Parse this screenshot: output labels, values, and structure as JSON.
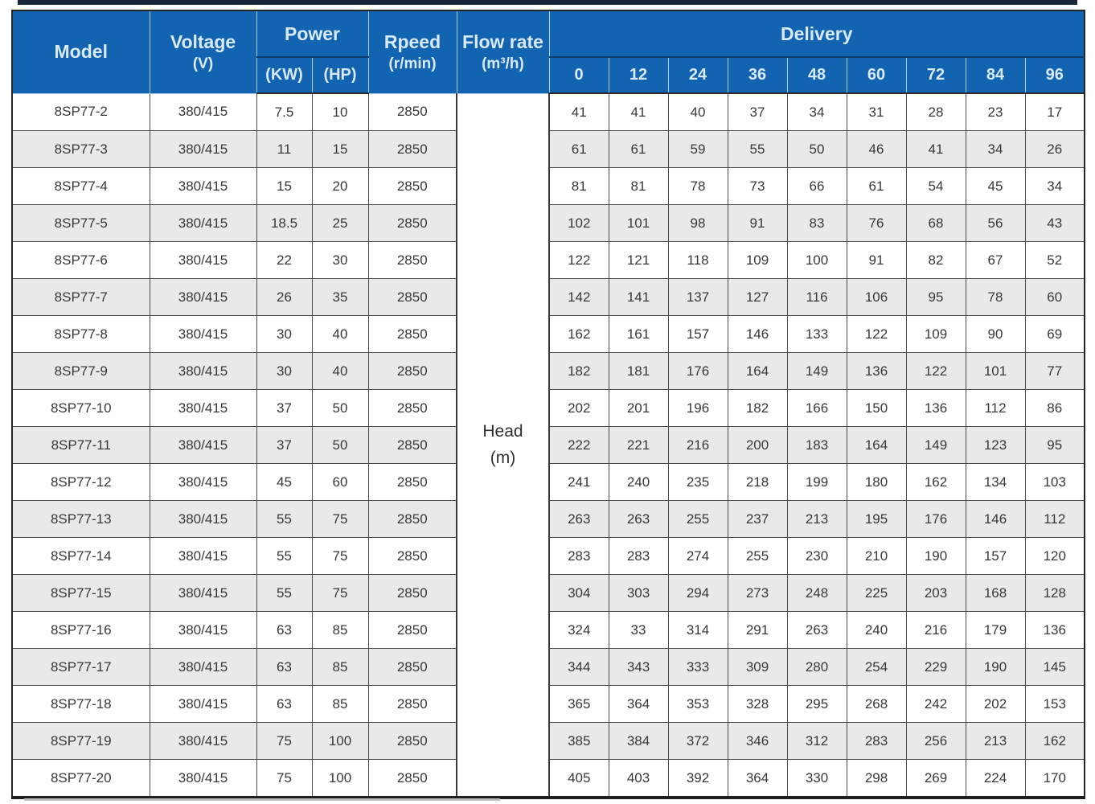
{
  "table": {
    "headers": {
      "model": "Model",
      "voltage_line1": "Voltage",
      "voltage_line2": "(V)",
      "power": "Power",
      "power_kw": "(KW)",
      "power_hp": "(HP)",
      "speed_line1": "Rpeed",
      "speed_line2": "(r/min)",
      "flow_line1": "Flow rate",
      "flow_line2": "(m³/h)",
      "delivery": "Delivery",
      "delivery_points": [
        "0",
        "12",
        "24",
        "36",
        "48",
        "60",
        "72",
        "84",
        "96"
      ],
      "head_line1": "Head",
      "head_line2": "(m)"
    },
    "rows": [
      {
        "model": "8SP77-2",
        "voltage": "380/415",
        "kw": "7.5",
        "hp": "10",
        "speed": "2850",
        "delivery": [
          "41",
          "41",
          "40",
          "37",
          "34",
          "31",
          "28",
          "23",
          "17"
        ]
      },
      {
        "model": "8SP77-3",
        "voltage": "380/415",
        "kw": "11",
        "hp": "15",
        "speed": "2850",
        "delivery": [
          "61",
          "61",
          "59",
          "55",
          "50",
          "46",
          "41",
          "34",
          "26"
        ]
      },
      {
        "model": "8SP77-4",
        "voltage": "380/415",
        "kw": "15",
        "hp": "20",
        "speed": "2850",
        "delivery": [
          "81",
          "81",
          "78",
          "73",
          "66",
          "61",
          "54",
          "45",
          "34"
        ]
      },
      {
        "model": "8SP77-5",
        "voltage": "380/415",
        "kw": "18.5",
        "hp": "25",
        "speed": "2850",
        "delivery": [
          "102",
          "101",
          "98",
          "91",
          "83",
          "76",
          "68",
          "56",
          "43"
        ]
      },
      {
        "model": "8SP77-6",
        "voltage": "380/415",
        "kw": "22",
        "hp": "30",
        "speed": "2850",
        "delivery": [
          "122",
          "121",
          "118",
          "109",
          "100",
          "91",
          "82",
          "67",
          "52"
        ]
      },
      {
        "model": "8SP77-7",
        "voltage": "380/415",
        "kw": "26",
        "hp": "35",
        "speed": "2850",
        "delivery": [
          "142",
          "141",
          "137",
          "127",
          "116",
          "106",
          "95",
          "78",
          "60"
        ]
      },
      {
        "model": "8SP77-8",
        "voltage": "380/415",
        "kw": "30",
        "hp": "40",
        "speed": "2850",
        "delivery": [
          "162",
          "161",
          "157",
          "146",
          "133",
          "122",
          "109",
          "90",
          "69"
        ]
      },
      {
        "model": "8SP77-9",
        "voltage": "380/415",
        "kw": "30",
        "hp": "40",
        "speed": "2850",
        "delivery": [
          "182",
          "181",
          "176",
          "164",
          "149",
          "136",
          "122",
          "101",
          "77"
        ]
      },
      {
        "model": "8SP77-10",
        "voltage": "380/415",
        "kw": "37",
        "hp": "50",
        "speed": "2850",
        "delivery": [
          "202",
          "201",
          "196",
          "182",
          "166",
          "150",
          "136",
          "112",
          "86"
        ]
      },
      {
        "model": "8SP77-11",
        "voltage": "380/415",
        "kw": "37",
        "hp": "50",
        "speed": "2850",
        "delivery": [
          "222",
          "221",
          "216",
          "200",
          "183",
          "164",
          "149",
          "123",
          "95"
        ]
      },
      {
        "model": "8SP77-12",
        "voltage": "380/415",
        "kw": "45",
        "hp": "60",
        "speed": "2850",
        "delivery": [
          "241",
          "240",
          "235",
          "218",
          "199",
          "180",
          "162",
          "134",
          "103"
        ]
      },
      {
        "model": "8SP77-13",
        "voltage": "380/415",
        "kw": "55",
        "hp": "75",
        "speed": "2850",
        "delivery": [
          "263",
          "263",
          "255",
          "237",
          "213",
          "195",
          "176",
          "146",
          "112"
        ]
      },
      {
        "model": "8SP77-14",
        "voltage": "380/415",
        "kw": "55",
        "hp": "75",
        "speed": "2850",
        "delivery": [
          "283",
          "283",
          "274",
          "255",
          "230",
          "210",
          "190",
          "157",
          "120"
        ]
      },
      {
        "model": "8SP77-15",
        "voltage": "380/415",
        "kw": "55",
        "hp": "75",
        "speed": "2850",
        "delivery": [
          "304",
          "303",
          "294",
          "273",
          "248",
          "225",
          "203",
          "168",
          "128"
        ]
      },
      {
        "model": "8SP77-16",
        "voltage": "380/415",
        "kw": "63",
        "hp": "85",
        "speed": "2850",
        "delivery": [
          "324",
          "33",
          "314",
          "291",
          "263",
          "240",
          "216",
          "179",
          "136"
        ]
      },
      {
        "model": "8SP77-17",
        "voltage": "380/415",
        "kw": "63",
        "hp": "85",
        "speed": "2850",
        "delivery": [
          "344",
          "343",
          "333",
          "309",
          "280",
          "254",
          "229",
          "190",
          "145"
        ]
      },
      {
        "model": "8SP77-18",
        "voltage": "380/415",
        "kw": "63",
        "hp": "85",
        "speed": "2850",
        "delivery": [
          "365",
          "364",
          "353",
          "328",
          "295",
          "268",
          "242",
          "202",
          "153"
        ]
      },
      {
        "model": "8SP77-19",
        "voltage": "380/415",
        "kw": "75",
        "hp": "100",
        "speed": "2850",
        "delivery": [
          "385",
          "384",
          "372",
          "346",
          "312",
          "283",
          "256",
          "213",
          "162"
        ]
      },
      {
        "model": "8SP77-20",
        "voltage": "380/415",
        "kw": "75",
        "hp": "100",
        "speed": "2850",
        "delivery": [
          "405",
          "403",
          "392",
          "364",
          "330",
          "298",
          "269",
          "224",
          "170"
        ]
      }
    ]
  },
  "colors": {
    "header_blue": "#1263b0",
    "header_text": "#d9eafc",
    "row_alt_gray": "#e9e9e9",
    "body_text": "#383838",
    "border_dark": "#4a4a4a",
    "top_bar": "#18263c"
  }
}
